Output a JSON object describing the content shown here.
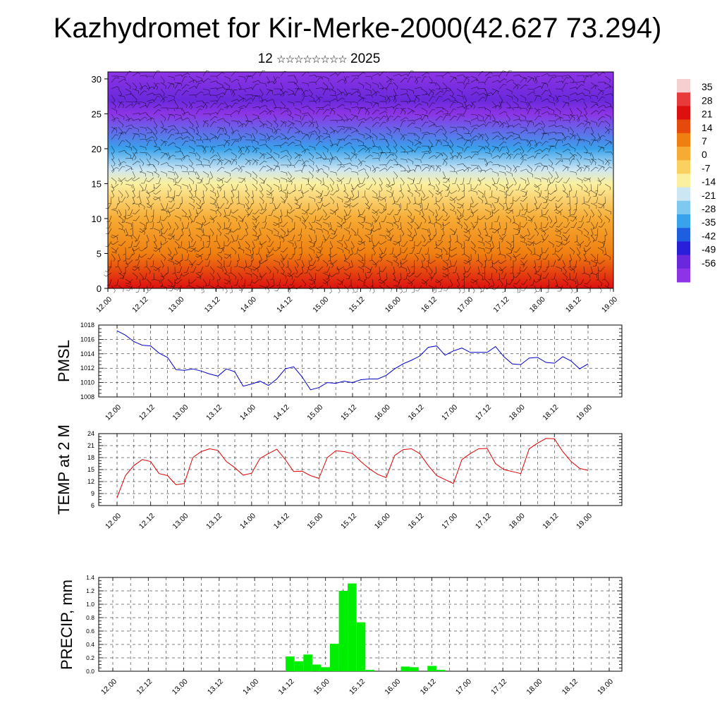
{
  "title": "Kazhydromet for Kir-Merke-2000(42.627 73.294)",
  "subtitle": {
    "day": "12",
    "stars": "☆☆☆☆☆☆☆☆",
    "year": "2025"
  },
  "time_labels": [
    "12.00",
    "12.12",
    "13.00",
    "13.12",
    "14.00",
    "14.12",
    "15.00",
    "15.12",
    "16.00",
    "16.12",
    "17.00",
    "17.12",
    "18.00",
    "18.12",
    "19.00"
  ],
  "colors": {
    "pmsl": "#0000cc",
    "temp": "#dd0000",
    "precip": "#00ee00",
    "grid": "#000000"
  },
  "chart_data": [
    {
      "type": "heatmap",
      "title": "",
      "xlabel": "",
      "ylabel": "",
      "x": [
        "12.00",
        "12.12",
        "13.00",
        "13.12",
        "14.00",
        "14.12",
        "15.00",
        "15.12",
        "16.00",
        "16.12",
        "17.00",
        "17.12",
        "18.00",
        "18.12",
        "19.00"
      ],
      "y_ticks": [
        0,
        5,
        10,
        15,
        20,
        25,
        30
      ],
      "ylim": [
        0,
        31
      ],
      "colorbar_labels": [
        "35",
        "28",
        "21",
        "14",
        "7",
        "0",
        "-7",
        "-14",
        "-21",
        "-28",
        "-35",
        "-42",
        "-49",
        "-56"
      ],
      "colorbar_colors": [
        "#f6d0d0",
        "#e83a3a",
        "#dd1010",
        "#e54a0c",
        "#ef7f10",
        "#f6ab34",
        "#fad060",
        "#fbf0a0",
        "#cde6f3",
        "#7fc8f0",
        "#38a2ec",
        "#1e5fe0",
        "#2a1fd8",
        "#6a28dc",
        "#8d34e6"
      ],
      "vertical_profile": [
        {
          "level": 0,
          "value": 21
        },
        {
          "level": 5,
          "value": 10
        },
        {
          "level": 10,
          "value": 2
        },
        {
          "level": 15,
          "value": -8
        },
        {
          "level": 17,
          "value": -15
        },
        {
          "level": 20,
          "value": -30
        },
        {
          "level": 25,
          "value": -58
        },
        {
          "level": 27,
          "value": -52
        },
        {
          "level": 31,
          "value": -62
        }
      ],
      "overlay": "wind barbs"
    },
    {
      "type": "line",
      "ylabel": "PMSL",
      "ylim": [
        1008,
        1018
      ],
      "y_ticks": [
        1008,
        1010,
        1012,
        1014,
        1016,
        1018
      ],
      "x_range": [
        0,
        84
      ],
      "series": [
        {
          "values": [
            1017.2,
            1016.6,
            1015.7,
            1015.2,
            1015.1,
            1014.1,
            1013.5,
            1011.8,
            1011.7,
            1011.9,
            1011.6,
            1011.2,
            1010.9,
            1011.9,
            1011.5,
            1009.5,
            1009.8,
            1010.2,
            1009.6,
            1010.5,
            1011.9,
            1012.2,
            1010.8,
            1009.0,
            1009.3,
            1010.0,
            1009.9,
            1010.2,
            1010.0,
            1010.4,
            1010.5,
            1010.5,
            1011.0,
            1011.9,
            1012.6,
            1013.1,
            1013.7,
            1014.9,
            1015.1,
            1013.8,
            1014.4,
            1014.8,
            1014.2,
            1014.2,
            1014.2,
            1015.0,
            1013.6,
            1012.6,
            1012.5,
            1013.4,
            1013.5,
            1012.8,
            1012.7,
            1013.6,
            1013.0,
            1011.9,
            1012.6
          ]
        }
      ]
    },
    {
      "type": "line",
      "ylabel": "TEMP at 2 M",
      "ylim": [
        6,
        24
      ],
      "y_ticks": [
        6,
        9,
        12,
        15,
        18,
        21,
        24
      ],
      "x_range": [
        0,
        84
      ],
      "series": [
        {
          "values": [
            8.0,
            13.5,
            16.0,
            17.5,
            17.0,
            14.0,
            13.5,
            11.2,
            11.5,
            18.0,
            19.5,
            20.2,
            19.8,
            17.0,
            15.5,
            13.6,
            14.1,
            17.8,
            19.0,
            20.1,
            17.5,
            14.5,
            14.6,
            13.5,
            12.8,
            18.0,
            19.7,
            19.5,
            19.0,
            17.0,
            15.2,
            13.8,
            13.0,
            18.5,
            20.0,
            20.2,
            19.0,
            16.0,
            13.5,
            12.5,
            11.5,
            17.5,
            19.0,
            20.2,
            20.3,
            16.5,
            15.0,
            14.5,
            14.0,
            20.2,
            21.6,
            22.8,
            22.7,
            19.5,
            17.0,
            15.3,
            14.8
          ]
        }
      ]
    },
    {
      "type": "bar",
      "ylabel": "PRECIP, mm",
      "ylim": [
        0,
        1.4
      ],
      "y_ticks": [
        "0.0",
        "0.2",
        "0.4",
        "0.6",
        "0.8",
        "1.0",
        "1.2",
        "1.4"
      ],
      "x_range": [
        0,
        84
      ],
      "values": [
        0,
        0,
        0,
        0,
        0,
        0,
        0,
        0,
        0,
        0,
        0,
        0,
        0,
        0,
        0,
        0,
        0,
        0,
        0,
        0,
        0.22,
        0.15,
        0.25,
        0.1,
        0.06,
        0.41,
        1.2,
        1.31,
        0.73,
        0.02,
        0,
        0,
        0,
        0.07,
        0.06,
        0,
        0.08,
        0.02,
        0,
        0,
        0,
        0,
        0,
        0,
        0,
        0,
        0,
        0,
        0,
        0,
        0,
        0,
        0,
        0,
        0,
        0,
        0
      ]
    }
  ]
}
